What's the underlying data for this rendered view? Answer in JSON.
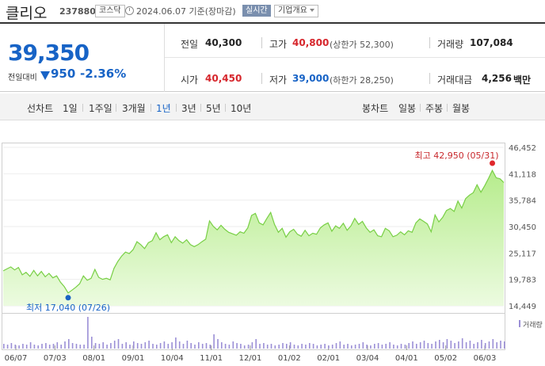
{
  "header": {
    "name": "클리오",
    "code": "237880",
    "market": "코스닥",
    "date_basis": "2024.06.07 기준(장마감)",
    "realtime": "실시간",
    "company_info": "기업개요"
  },
  "quote": {
    "price": "39,350",
    "change_label": "전일대비",
    "change_amount": "950",
    "change_pct": "-2.36%",
    "prev_label": "전일",
    "prev_value": "40,300",
    "high_label": "고가",
    "high_value": "40,800",
    "upper_limit": "(상한가 52,300)",
    "volume_label": "거래량",
    "volume_value": "107,084",
    "open_label": "시가",
    "open_value": "40,450",
    "low_label": "저가",
    "low_value": "39,000",
    "lower_limit": "(하한가 28,250)",
    "amount_label": "거래대금",
    "amount_value": "4,256",
    "amount_unit": "백만"
  },
  "period_bar": {
    "line_chart_label": "선차트",
    "periods": [
      "1일",
      "1주일",
      "3개월",
      "1년",
      "3년",
      "5년",
      "10년"
    ],
    "selected_period": "1년",
    "candle_chart_label": "봉차트",
    "candles": [
      "일봉",
      "주봉",
      "월봉"
    ]
  },
  "colors": {
    "up": "#d6262c",
    "down": "#1763c6",
    "area_fill": "#c9f1a8",
    "line": "#7cd24a"
  },
  "chart_data": {
    "type": "area",
    "x_labels": [
      "06/07",
      "07/03",
      "08/01",
      "09/01",
      "10/04",
      "11/01",
      "12/01",
      "01/02",
      "02/01",
      "03/04",
      "04/01",
      "05/02",
      "06/03"
    ],
    "y_ticks": [
      "46,452",
      "41,118",
      "35,784",
      "30,450",
      "25,117",
      "19,783",
      "14,449"
    ],
    "ylim": [
      14449,
      46452
    ],
    "max_annotation": "최고 42,950 (05/31)",
    "min_annotation": "최저 17,040 (07/26)",
    "volume_label": "거래량",
    "price_values": [
      21500,
      21900,
      22300,
      21700,
      22200,
      20700,
      21200,
      20400,
      21600,
      20500,
      21400,
      20300,
      21000,
      20100,
      20500,
      19200,
      18300,
      17040,
      17600,
      18200,
      18900,
      20500,
      19600,
      20000,
      21800,
      20200,
      19800,
      20000,
      19700,
      22000,
      23400,
      24500,
      25300,
      25000,
      25800,
      27400,
      26800,
      26000,
      27200,
      27600,
      29200,
      27800,
      28400,
      28800,
      27200,
      28400,
      27600,
      27100,
      27800,
      26800,
      26400,
      26800,
      27400,
      27900,
      31600,
      30500,
      29800,
      30700,
      29900,
      29300,
      29000,
      28700,
      29400,
      29100,
      30200,
      32700,
      33100,
      31200,
      30800,
      32100,
      33300,
      30900,
      29300,
      30100,
      28300,
      29400,
      29900,
      28900,
      28500,
      29700,
      28600,
      29100,
      28900,
      30200,
      30800,
      31200,
      29500,
      30600,
      30100,
      31100,
      29700,
      30600,
      32100,
      30900,
      31500,
      30200,
      29300,
      29800,
      28600,
      28400,
      30100,
      29600,
      28400,
      28700,
      29400,
      28800,
      29600,
      29300,
      31200,
      32000,
      31500,
      31000,
      29400,
      32800,
      31400,
      32300,
      33700,
      34100,
      33500,
      35600,
      34200,
      36100,
      36800,
      37300,
      38900,
      37400,
      38700,
      40200,
      41800,
      40300,
      40100,
      39350
    ],
    "volume_values": [
      6,
      5,
      7,
      5,
      4,
      6,
      5,
      8,
      5,
      4,
      6,
      7,
      5,
      6,
      8,
      5,
      9,
      12,
      7,
      6,
      5,
      5,
      40,
      15,
      7,
      6,
      8,
      5,
      7,
      10,
      12,
      6,
      8,
      5,
      9,
      7,
      6,
      8,
      10,
      6,
      5,
      7,
      9,
      6,
      8,
      14,
      9,
      6,
      10,
      7,
      5,
      8,
      6,
      7,
      5,
      18,
      12,
      8,
      6,
      5,
      9,
      7,
      6,
      4,
      5,
      8,
      12,
      6,
      7,
      5,
      6,
      4,
      5,
      7,
      6,
      8,
      5,
      4,
      6,
      5,
      7,
      6,
      4,
      5,
      6,
      4,
      5,
      7,
      9,
      5,
      6,
      4,
      5,
      6,
      8,
      5,
      4,
      6,
      7,
      5,
      6,
      8,
      5,
      4,
      6,
      5,
      7,
      9,
      6,
      8,
      10,
      7,
      6,
      9,
      11,
      8,
      12,
      10,
      7,
      9,
      13,
      8,
      10,
      6,
      8,
      11,
      7,
      9,
      12,
      8,
      10,
      9
    ]
  }
}
